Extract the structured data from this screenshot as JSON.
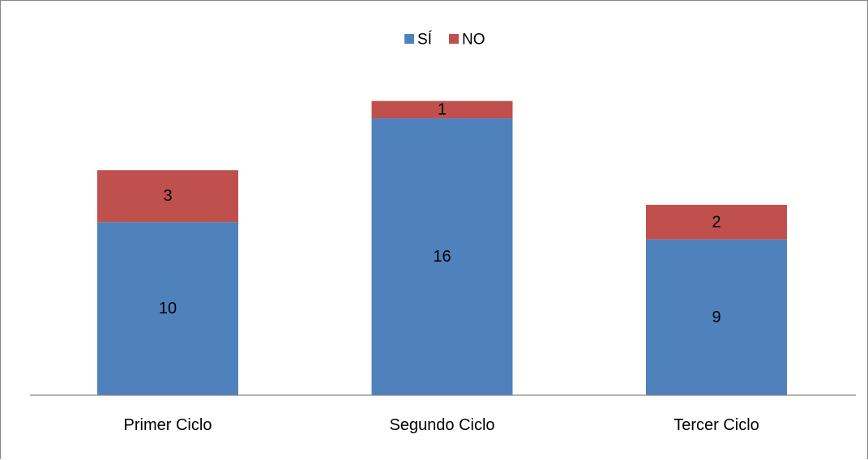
{
  "chart_data": {
    "type": "bar",
    "stacked": true,
    "categories": [
      "Primer Ciclo",
      "Segundo Ciclo",
      "Tercer Ciclo"
    ],
    "series": [
      {
        "name": "SÍ",
        "values": [
          10,
          16,
          9
        ],
        "color": "#4F81BD"
      },
      {
        "name": "NO",
        "values": [
          3,
          1,
          2
        ],
        "color": "#C0504D"
      }
    ],
    "ylim": [
      0,
      17.5
    ],
    "grid": false,
    "legend_position": "top-center",
    "data_labels": true
  }
}
